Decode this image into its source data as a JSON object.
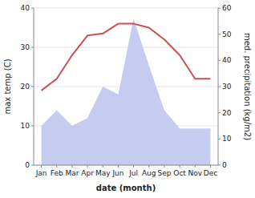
{
  "chart_data": {
    "type": "line",
    "xlabel": "date (month)",
    "ylabel": "max temp (C)",
    "y2label": "med. precipitation (kg/m2)",
    "categories": [
      "Jan",
      "Feb",
      "Mar",
      "Apr",
      "May",
      "Jun",
      "Jul",
      "Aug",
      "Sep",
      "Oct",
      "Nov",
      "Dec"
    ],
    "series": [
      {
        "type": "area",
        "axis": "y2",
        "color": "#c5ccf0",
        "values": [
          15,
          21,
          15,
          18,
          30,
          27,
          56,
          38,
          21,
          14,
          14,
          14
        ]
      },
      {
        "type": "line",
        "color": "#cd4f4f",
        "values": [
          19,
          22,
          28,
          33,
          33.5,
          36,
          36,
          35,
          32,
          28,
          22,
          22
        ]
      }
    ],
    "ylim": [
      0,
      40
    ],
    "yticks": [
      0,
      10,
      20,
      30,
      40
    ],
    "y2lim": [
      0,
      60
    ],
    "y2ticks": [
      0,
      10,
      20,
      30,
      40,
      50,
      60
    ],
    "grid": true
  }
}
